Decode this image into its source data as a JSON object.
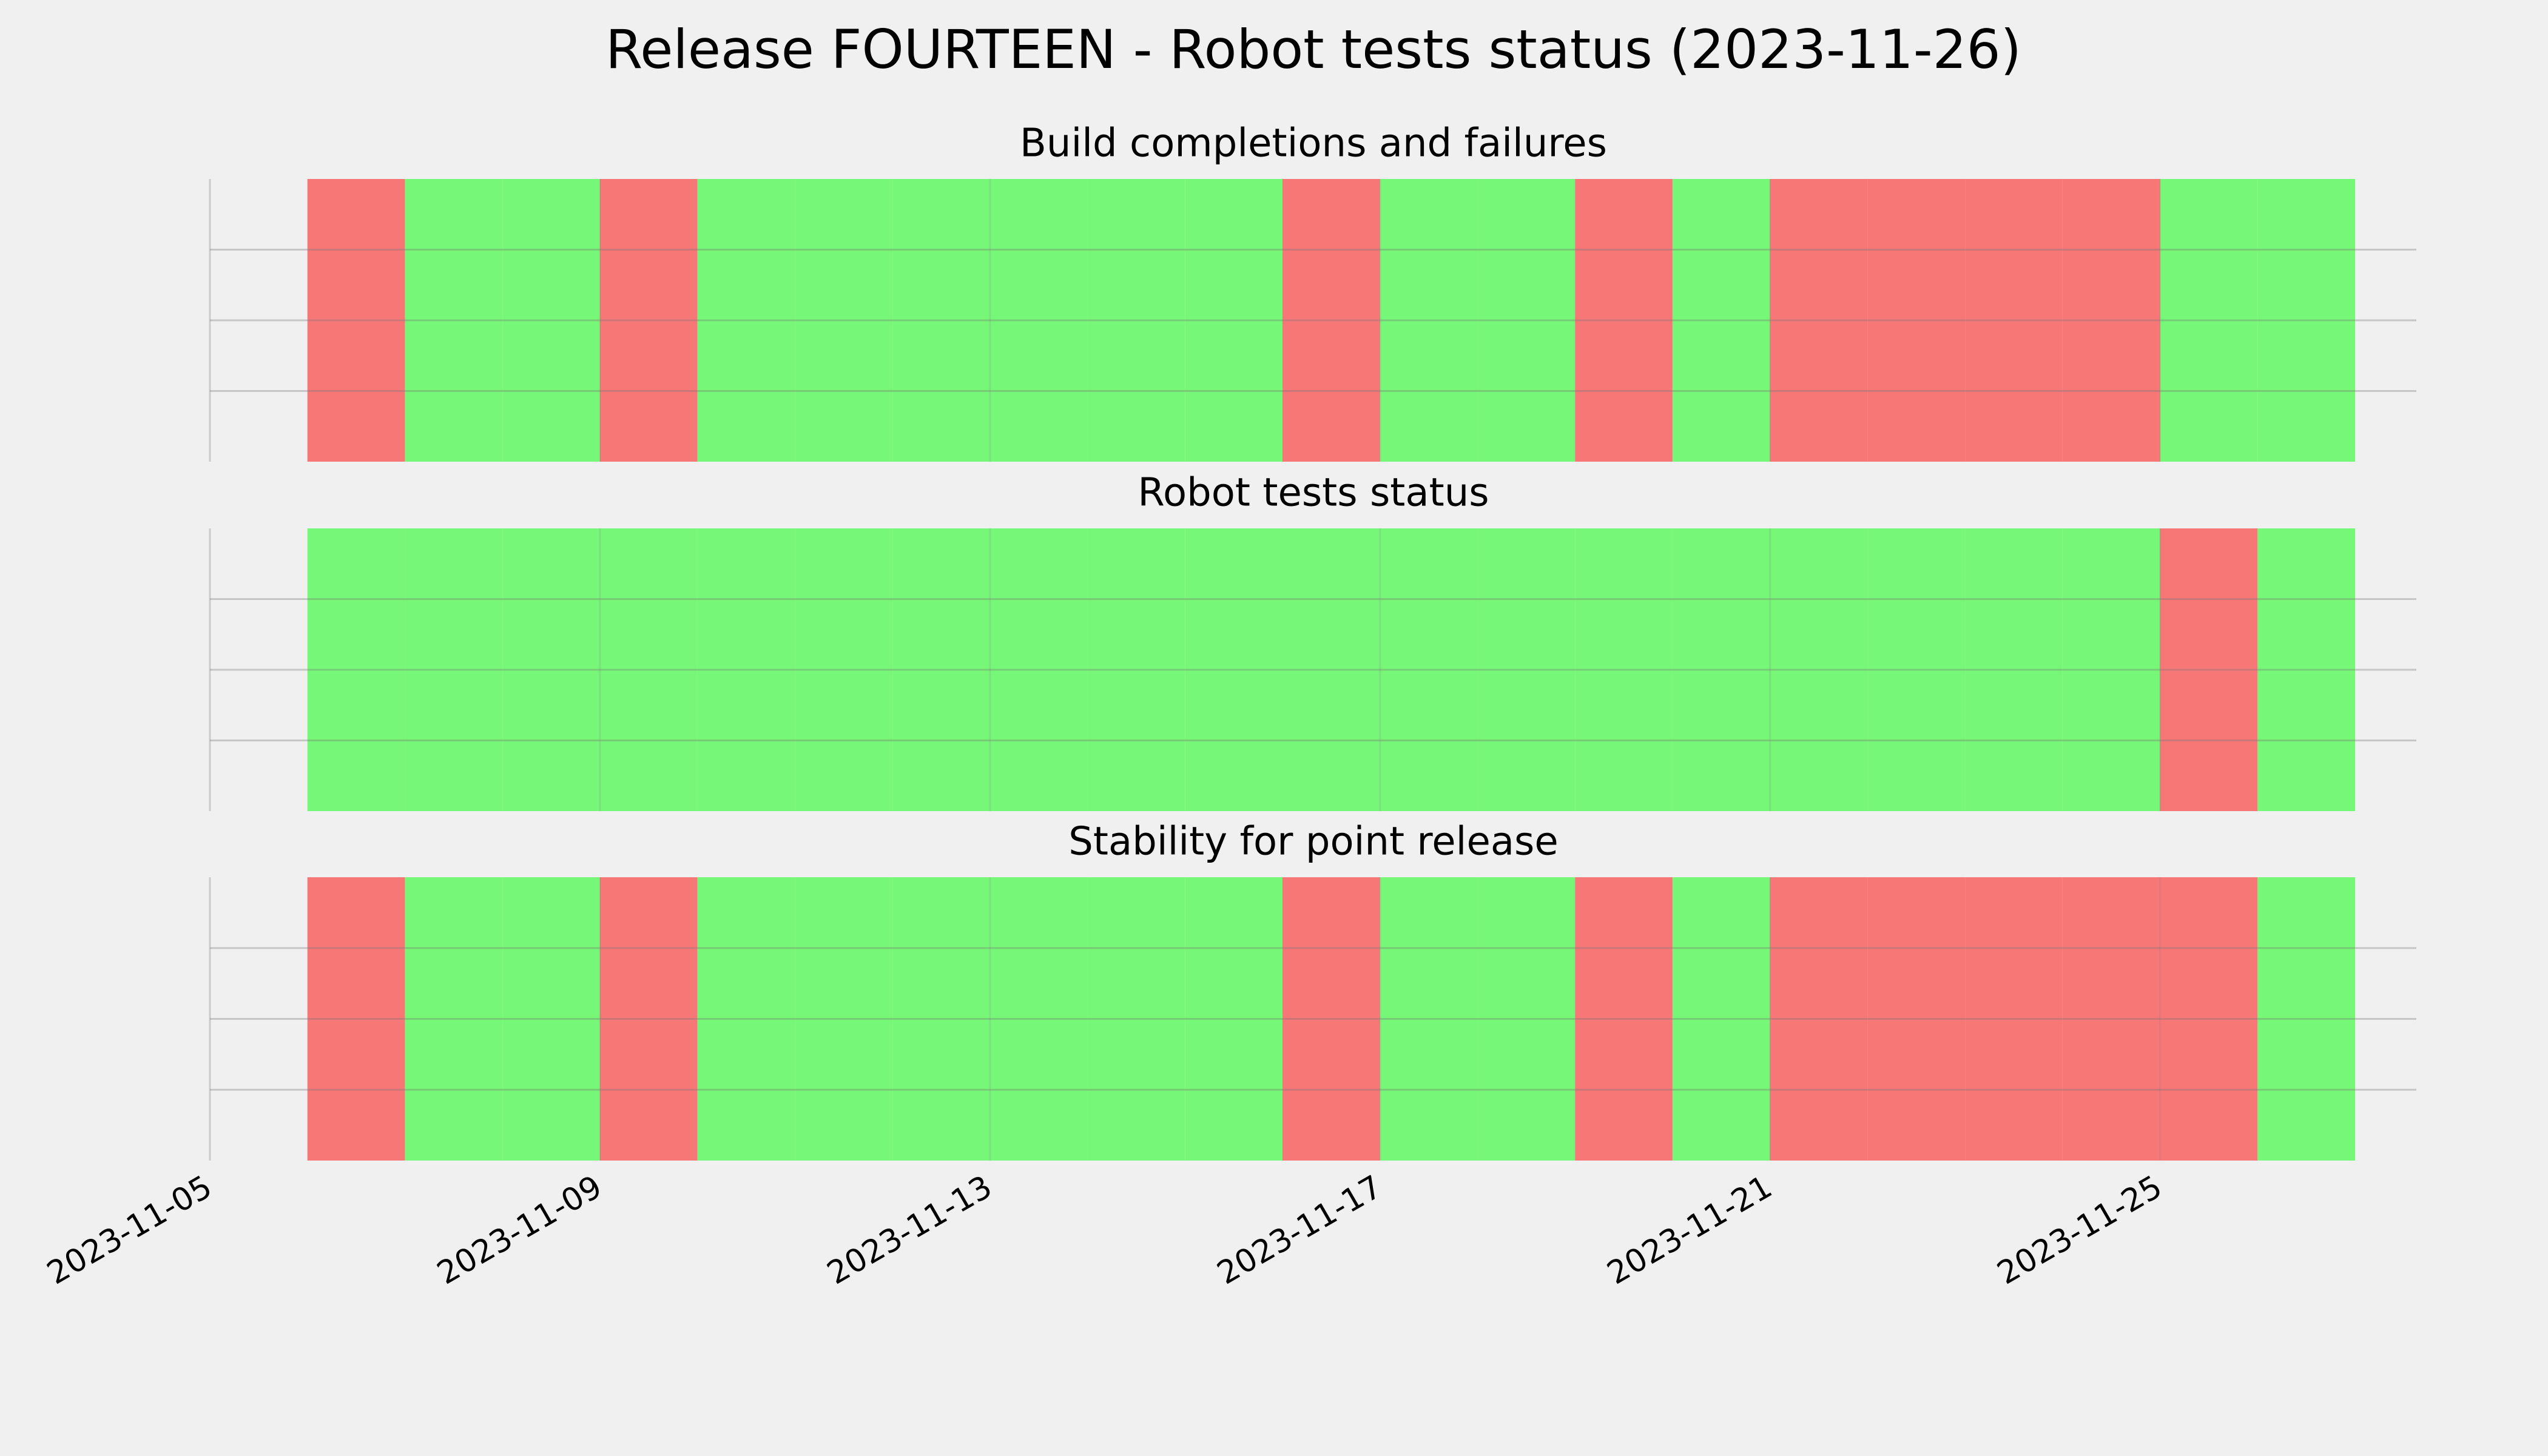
{
  "chart_data": {
    "type": "status-span",
    "title": "Release FOURTEEN - Robot tests status (2023-11-26)",
    "x": [
      "2023-11-06",
      "2023-11-07",
      "2023-11-08",
      "2023-11-09",
      "2023-11-10",
      "2023-11-11",
      "2023-11-12",
      "2023-11-13",
      "2023-11-14",
      "2023-11-15",
      "2023-11-16",
      "2023-11-17",
      "2023-11-18",
      "2023-11-19",
      "2023-11-20",
      "2023-11-21",
      "2023-11-22",
      "2023-11-23",
      "2023-11-24",
      "2023-11-25",
      "2023-11-26"
    ],
    "xlim": [
      "2023-11-05",
      "2023-11-27"
    ],
    "xticks": [
      "2023-11-05",
      "2023-11-09",
      "2023-11-13",
      "2023-11-17",
      "2023-11-21",
      "2023-11-25"
    ],
    "panels": [
      {
        "title": "Build completions and failures",
        "values": [
          0,
          1,
          1,
          0,
          1,
          1,
          1,
          1,
          1,
          1,
          0,
          1,
          1,
          0,
          1,
          0,
          0,
          0,
          0,
          1,
          1
        ]
      },
      {
        "title": "Robot tests status",
        "values": [
          1,
          1,
          1,
          1,
          1,
          1,
          1,
          1,
          1,
          1,
          1,
          1,
          1,
          1,
          1,
          1,
          1,
          1,
          1,
          0,
          1
        ]
      },
      {
        "title": "Stability for point release",
        "values": [
          0,
          1,
          1,
          0,
          1,
          1,
          1,
          1,
          1,
          1,
          0,
          1,
          1,
          0,
          1,
          0,
          0,
          0,
          0,
          0,
          1
        ]
      }
    ],
    "status_colors": [
      "#f77777",
      "#77f777"
    ],
    "grid": true
  }
}
